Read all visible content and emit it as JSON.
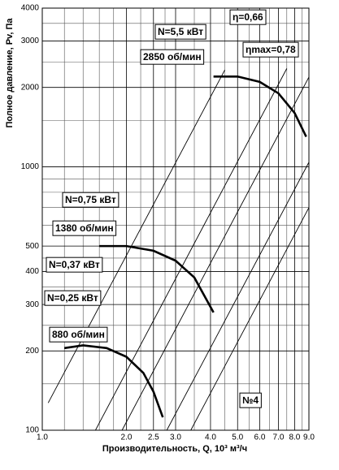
{
  "chart_data": {
    "type": "line",
    "y_label": "Полное давление, Pv, Па",
    "x_label": "Производительность, Q, 10³ м³/ч",
    "x_log": true,
    "y_log": true,
    "grid": true,
    "xlim": [
      1,
      9
    ],
    "ylim": [
      100,
      4000
    ],
    "xticks": [
      {
        "value": 1,
        "label": "1.0"
      },
      {
        "value": 2,
        "label": "2.0"
      },
      2.5,
      {
        "value": 3,
        "label": "3.0"
      },
      {
        "value": 4,
        "label": "4.0"
      },
      {
        "value": 5,
        "label": "5.0"
      },
      {
        "value": 6,
        "label": "6.0"
      },
      {
        "value": 7,
        "label": "7.0"
      },
      {
        "value": 8,
        "label": "8.0"
      },
      {
        "value": 9,
        "label": "9.0"
      }
    ],
    "yticks": [
      100,
      200,
      300,
      400,
      500,
      1000,
      2000,
      3000,
      4000
    ],
    "x_minor_ticks": [
      1.2,
      1.4,
      1.6,
      1.8,
      2.25,
      2.75,
      3.5,
      4.5,
      5.5,
      6.5,
      7.5,
      8.5
    ],
    "y_minor_ticks": [
      150,
      250,
      350,
      450,
      600,
      700,
      800,
      900,
      1500,
      2500,
      3500
    ],
    "series": [
      {
        "name": "880 об/мин",
        "color": "#000000",
        "x": [
          1.2,
          1.4,
          1.7,
          2.0,
          2.3,
          2.5,
          2.7
        ],
        "values": [
          205,
          210,
          205,
          190,
          165,
          140,
          112
        ]
      },
      {
        "name": "1380 об/мин",
        "color": "#000000",
        "x": [
          1.6,
          2.0,
          2.5,
          3.0,
          3.5,
          4.1
        ],
        "values": [
          500,
          500,
          480,
          440,
          380,
          280
        ]
      },
      {
        "name": "2850 об/мин",
        "color": "#000000",
        "x": [
          4.1,
          5.0,
          6.0,
          7.0,
          8.0,
          8.8
        ],
        "values": [
          2200,
          2200,
          2100,
          1900,
          1600,
          1300
        ]
      }
    ],
    "system_lines": [
      {
        "x": [
          1.05,
          4.5
        ],
        "values": [
          127,
          2330
        ]
      },
      {
        "x": [
          1.55,
          7.5
        ],
        "values": [
          100,
          2360
        ]
      },
      {
        "x": [
          1.93,
          9
        ],
        "values": [
          100,
          2190
        ]
      },
      {
        "x": [
          2.79,
          9
        ],
        "values": [
          100,
          1040
        ]
      },
      {
        "x": [
          3.4,
          9
        ],
        "values": [
          100,
          700
        ]
      }
    ],
    "annotations": [
      "N=5,5 кВт",
      "η=0,66",
      "ηmax=0,78",
      "N=0,75 кВт",
      "N=0,37 кВт",
      "N=0,25 кВт",
      "№4"
    ]
  }
}
